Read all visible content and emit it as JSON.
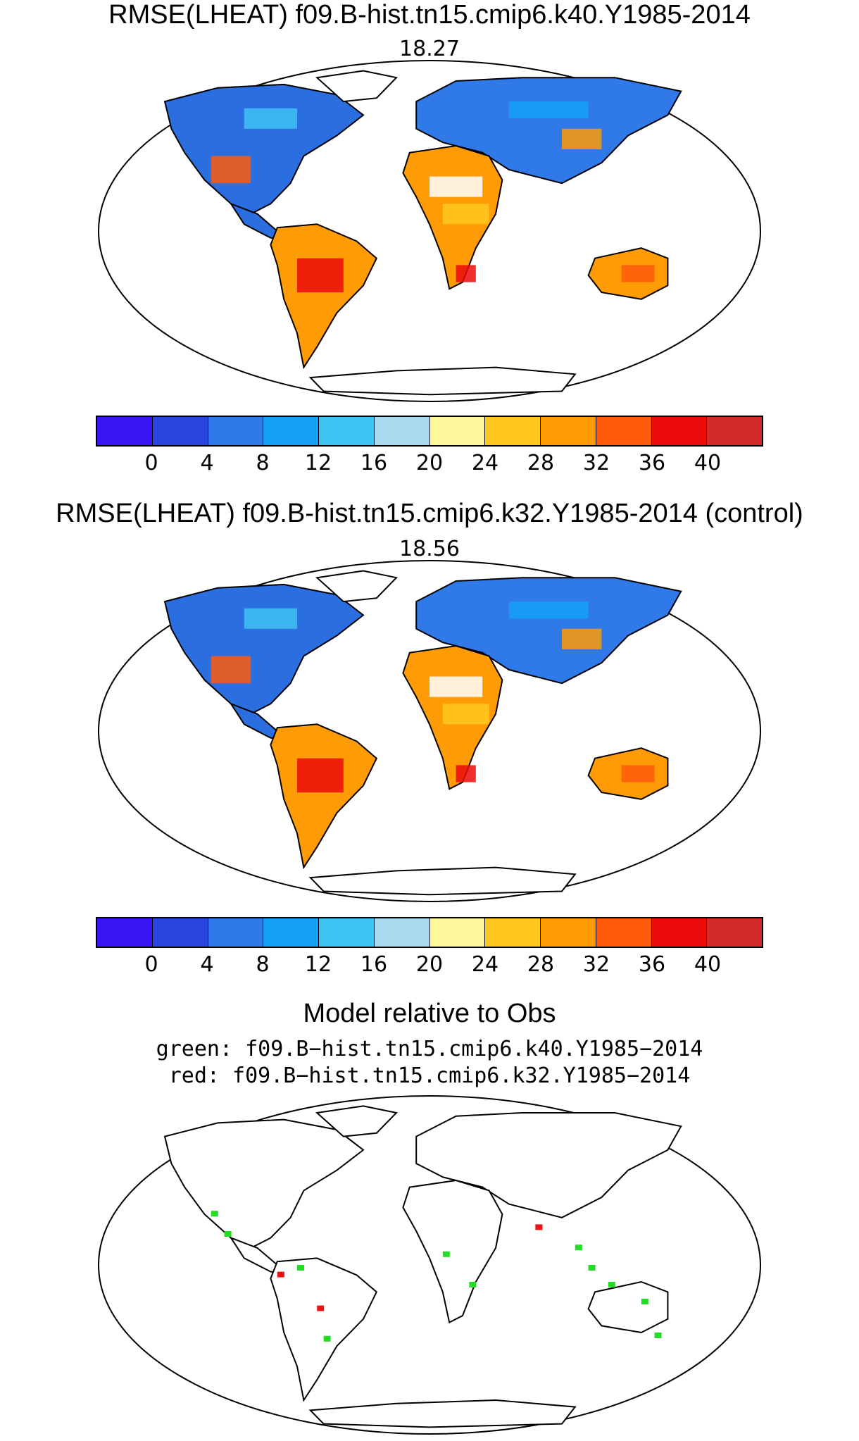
{
  "panel1": {
    "title": "RMSE(LHEAT) f09.B-hist.tn15.cmip6.k40.Y1985-2014",
    "rmse": "18.27"
  },
  "panel2": {
    "title": "RMSE(LHEAT) f09.B-hist.tn15.cmip6.k32.Y1985-2014 (control)",
    "rmse": "18.56"
  },
  "panel3": {
    "title": "Model relative to Obs",
    "green_line": "green: f09.B−hist.tn15.cmip6.k40.Y1985−2014",
    "red_line": "red: f09.B−hist.tn15.cmip6.k32.Y1985−2014"
  },
  "colorbar": {
    "colors": [
      "#3a14f0",
      "#2a46e0",
      "#3079e8",
      "#13a0f5",
      "#3ec1f3",
      "#a8daf0",
      "#fff799",
      "#ffc81e",
      "#ff9b04",
      "#ff5a0c",
      "#ec0a0a",
      "#d22a2a"
    ],
    "labels": [
      "0",
      "4",
      "8",
      "12",
      "16",
      "20",
      "24",
      "28",
      "32",
      "36",
      "40"
    ]
  },
  "legend_colors": {
    "green": "#22dd22",
    "red": "#ee1111"
  }
}
